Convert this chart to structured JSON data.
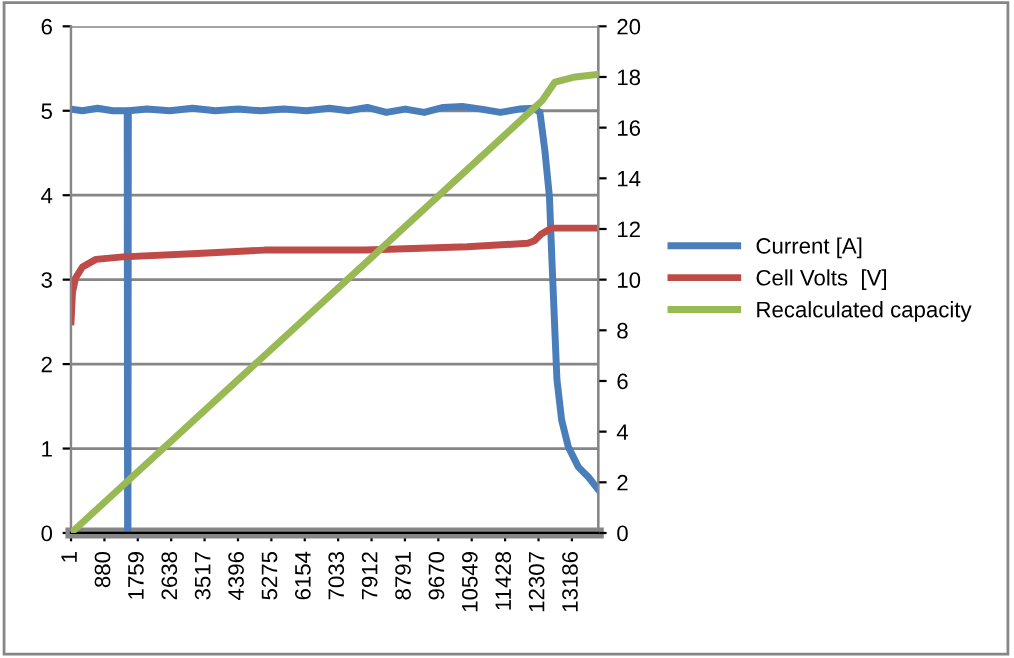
{
  "chart_data": {
    "type": "line",
    "xlim": [
      0,
      13880
    ],
    "xticks": [
      1,
      880,
      1759,
      2638,
      3517,
      4396,
      5275,
      6154,
      7033,
      7912,
      8791,
      9670,
      10549,
      11428,
      12307,
      13186
    ],
    "ylim": [
      0,
      6
    ],
    "yticks": [
      0,
      1,
      2,
      3,
      4,
      5,
      6
    ],
    "y2lim": [
      0,
      20
    ],
    "y2ticks": [
      0,
      2,
      4,
      6,
      8,
      10,
      12,
      14,
      16,
      18,
      20
    ],
    "grid": "y",
    "legend": "right",
    "marker": "none",
    "line_style": "solid",
    "series": [
      {
        "name": "Current [A]",
        "color": "#4a7ebb",
        "x": [
          1,
          300,
          700,
          1100,
          1480,
          1490,
          1500,
          1510,
          2000,
          2600,
          3200,
          3800,
          4400,
          5000,
          5600,
          6200,
          6800,
          7300,
          7800,
          8300,
          8800,
          9300,
          9800,
          10300,
          10800,
          11300,
          11800,
          12200,
          12345,
          12472,
          12595,
          12665,
          12739,
          12792,
          12915,
          13091,
          13358,
          13625,
          13870
        ],
        "values": [
          5.02,
          5.0,
          5.03,
          5.0,
          5.0,
          0,
          0,
          5.0,
          5.02,
          5.0,
          5.03,
          5.0,
          5.02,
          5.0,
          5.02,
          5.0,
          5.03,
          5.0,
          5.04,
          4.98,
          5.02,
          4.98,
          5.04,
          5.05,
          5.02,
          4.98,
          5.02,
          5.03,
          4.98,
          4.54,
          3.98,
          3.18,
          2.38,
          1.82,
          1.34,
          1.02,
          0.78,
          0.66,
          0.52
        ]
      },
      {
        "name": "Cell Volts  [V]",
        "color": "#be4b48",
        "x": [
          1,
          40,
          120,
          300,
          657,
          1368,
          3322,
          5098,
          7763,
          10428,
          12026,
          12200,
          12381,
          12647,
          13870
        ],
        "values": [
          2.5,
          2.85,
          3.02,
          3.15,
          3.24,
          3.27,
          3.31,
          3.35,
          3.35,
          3.39,
          3.43,
          3.46,
          3.54,
          3.61,
          3.61
        ]
      },
      {
        "name": "Recalculated capacity",
        "color": "#98b954",
        "axis": "y2",
        "x": [
          1,
          1493,
          4000,
          8000,
          12117,
          12400,
          12740,
          13270,
          13870
        ],
        "values": [
          0,
          2.05,
          5.5,
          11.0,
          16.67,
          17.06,
          17.8,
          18.0,
          18.1
        ]
      }
    ]
  }
}
